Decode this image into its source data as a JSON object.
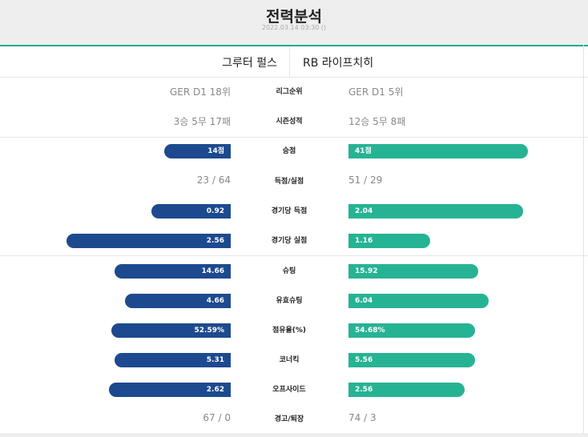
{
  "header": {
    "title": "전력분석",
    "datetime": "2022.03.14 03:30 ()"
  },
  "teams": {
    "home": "그루터 펄스",
    "away": "RB 라이프치히"
  },
  "rows": [
    {
      "label": "리그순위",
      "home": "GER D1 18위",
      "away": "GER D1 5위"
    },
    {
      "label": "시즌성적",
      "home": "3승 5무 17패",
      "away": "12승 5무 8패"
    },
    {
      "label": "승점",
      "home": "14점",
      "away": "41점",
      "home_ratio": 0.25,
      "away_ratio": 0.68
    },
    {
      "label": "득점/실점",
      "home": "23 / 64",
      "away": "51 / 29"
    },
    {
      "label": "경기당 득점",
      "home": "0.92",
      "away": "2.04",
      "home_ratio": 0.3,
      "away_ratio": 0.66
    },
    {
      "label": "경기당 실점",
      "home": "2.56",
      "away": "1.16",
      "home_ratio": 0.62,
      "away_ratio": 0.31
    },
    {
      "label": "슈팅",
      "home": "14.66",
      "away": "15.92",
      "home_ratio": 0.44,
      "away_ratio": 0.49
    },
    {
      "label": "유효슈팅",
      "home": "4.66",
      "away": "6.04",
      "home_ratio": 0.4,
      "away_ratio": 0.53
    },
    {
      "label": "점유율(%)",
      "home": "52.59%",
      "away": "54.68%",
      "home_ratio": 0.45,
      "away_ratio": 0.48
    },
    {
      "label": "코너킥",
      "home": "5.31",
      "away": "5.56",
      "home_ratio": 0.44,
      "away_ratio": 0.48
    },
    {
      "label": "오프사이드",
      "home": "2.62",
      "away": "2.56",
      "home_ratio": 0.46,
      "away_ratio": 0.44
    },
    {
      "label": "경고/퇴장",
      "home": "67 / 0",
      "away": "74 / 3"
    }
  ],
  "colors": {
    "home_bar": "#1d4a8e",
    "away_bar": "#26b394",
    "accent_line": "#26a98f"
  }
}
